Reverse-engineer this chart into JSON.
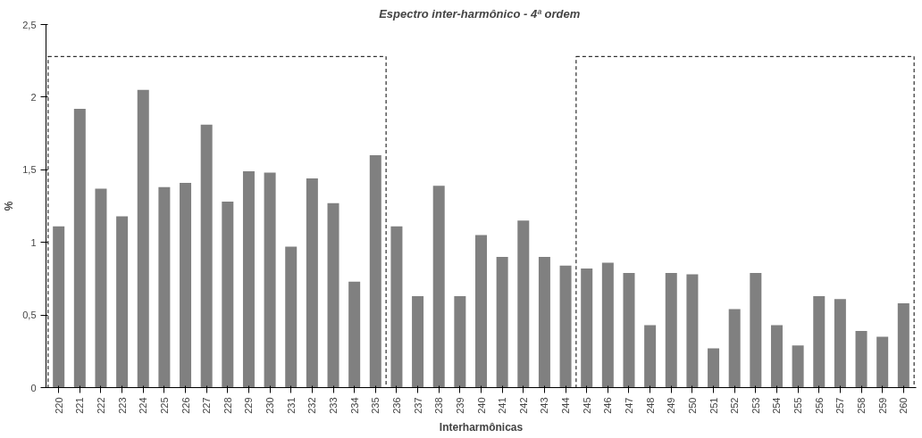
{
  "chart_data": {
    "type": "bar",
    "title": "Espectro inter-harmônico  - 4ª ordem",
    "xlabel": "Interharmônicas",
    "ylabel": "%",
    "categories": [
      "220",
      "221",
      "222",
      "223",
      "224",
      "225",
      "226",
      "227",
      "228",
      "229",
      "230",
      "231",
      "232",
      "233",
      "234",
      "235",
      "236",
      "237",
      "238",
      "239",
      "240",
      "241",
      "242",
      "243",
      "244",
      "245",
      "246",
      "247",
      "248",
      "249",
      "250",
      "251",
      "252",
      "253",
      "254",
      "255",
      "256",
      "257",
      "258",
      "259",
      "260"
    ],
    "values": [
      1.11,
      1.92,
      1.37,
      1.18,
      2.05,
      1.38,
      1.41,
      1.81,
      1.28,
      1.49,
      1.48,
      0.97,
      1.44,
      1.27,
      0.73,
      1.6,
      1.11,
      0.63,
      1.39,
      0.63,
      1.05,
      0.9,
      1.15,
      0.9,
      0.84,
      0.82,
      0.86,
      0.79,
      0.43,
      0.79,
      0.78,
      0.27,
      0.54,
      0.79,
      0.43,
      0.29,
      0.63,
      0.61,
      0.39,
      0.35,
      0.58
    ],
    "color": "#808080",
    "ylim": [
      0,
      2.5
    ],
    "yticks": [
      0,
      {
        "value": 0.5,
        "label": "0,5"
      },
      1,
      {
        "value": 1.5,
        "label": "1,5"
      },
      2,
      {
        "value": 2.5,
        "label": "2,5"
      }
    ],
    "grid": false
  }
}
